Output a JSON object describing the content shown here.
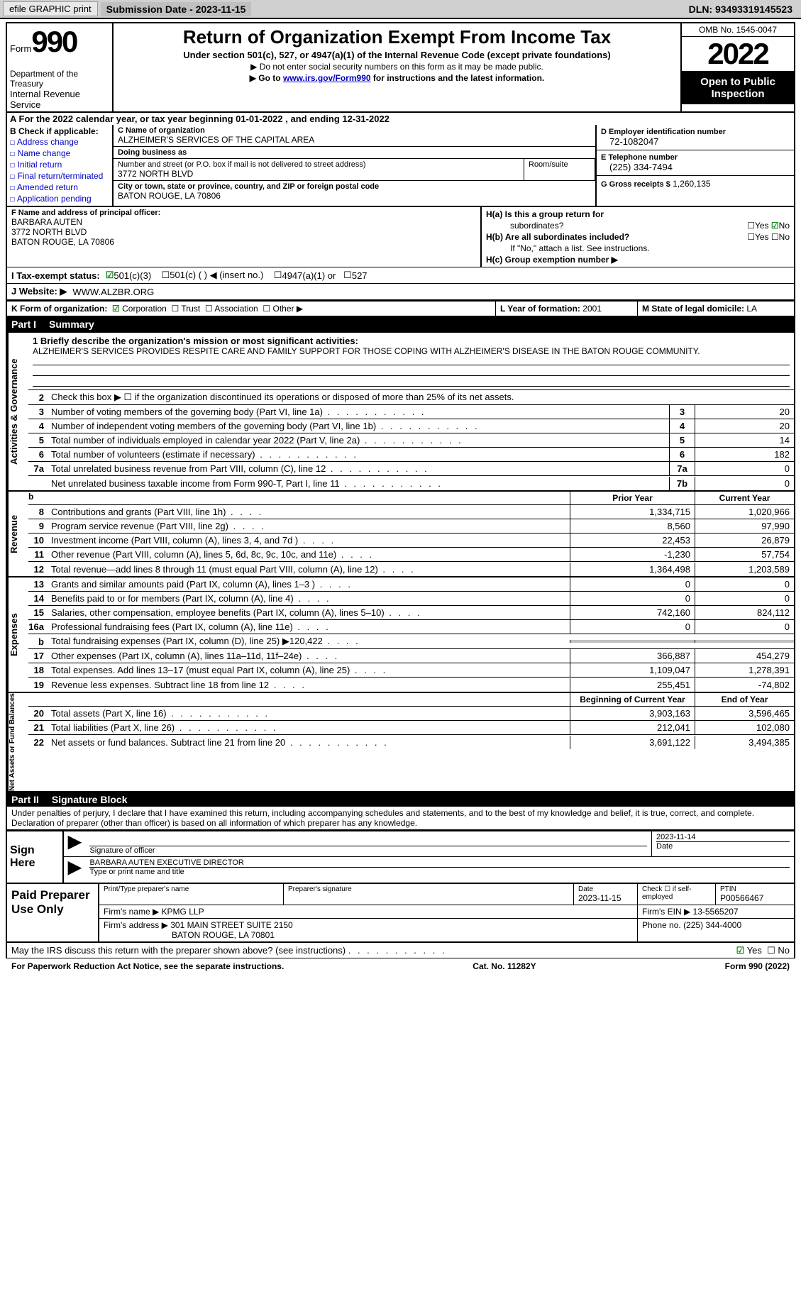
{
  "topbar": {
    "efile": "efile GRAPHIC print",
    "submission_date": "Submission Date - 2023-11-15",
    "dln": "DLN: 93493319145523"
  },
  "header": {
    "form_word": "Form",
    "form_number": "990",
    "dept": "Department of the Treasury",
    "irs": "Internal Revenue Service",
    "title": "Return of Organization Exempt From Income Tax",
    "subtitle": "Under section 501(c), 527, or 4947(a)(1) of the Internal Revenue Code (except private foundations)",
    "note1": "▶ Do not enter social security numbers on this form as it may be made public.",
    "note2_pre": "▶ Go to ",
    "note2_link": "www.irs.gov/Form990",
    "note2_post": " for instructions and the latest information.",
    "omb": "OMB No. 1545-0047",
    "year": "2022",
    "public": "Open to Public Inspection"
  },
  "sectionA": "A For the 2022 calendar year, or tax year beginning 01-01-2022   , and ending 12-31-2022",
  "sectionB": {
    "label": "B Check if applicable:",
    "opts": [
      "Address change",
      "Name change",
      "Initial return",
      "Final return/terminated",
      "Amended return",
      "Application pending"
    ]
  },
  "sectionC": {
    "name_label": "C Name of organization",
    "name": "ALZHEIMER'S SERVICES OF THE CAPITAL AREA",
    "dba_label": "Doing business as",
    "dba": "",
    "addr_label": "Number and street (or P.O. box if mail is not delivered to street address)",
    "addr": "3772 NORTH BLVD",
    "room_label": "Room/suite",
    "city_label": "City or town, state or province, country, and ZIP or foreign postal code",
    "city": "BATON ROUGE, LA  70806"
  },
  "sectionD": {
    "ein_label": "D Employer identification number",
    "ein": "72-1082047",
    "tel_label": "E Telephone number",
    "tel": "(225) 334-7494",
    "gross_label": "G Gross receipts $",
    "gross": "1,260,135"
  },
  "sectionF": {
    "label": "F Name and address of principal officer:",
    "name": "BARBARA AUTEN",
    "addr1": "3772 NORTH BLVD",
    "addr2": "BATON ROUGE, LA  70806"
  },
  "sectionH": {
    "ha_label": "H(a)  Is this a group return for",
    "ha_sub": "subordinates?",
    "hb_label": "H(b)  Are all subordinates included?",
    "hb_note": "If \"No,\" attach a list. See instructions.",
    "hc_label": "H(c)  Group exemption number ▶",
    "yes": "Yes",
    "no": "No"
  },
  "sectionI": {
    "label": "I   Tax-exempt status:",
    "o1": "501(c)(3)",
    "o2": "501(c) (  ) ◀ (insert no.)",
    "o3": "4947(a)(1) or",
    "o4": "527"
  },
  "sectionJ": {
    "label": "J   Website: ▶",
    "value": "WWW.ALZBR.ORG"
  },
  "sectionK": {
    "label": "K Form of organization:",
    "corp": "Corporation",
    "trust": "Trust",
    "assoc": "Association",
    "other": "Other ▶"
  },
  "sectionL": {
    "label": "L Year of formation:",
    "value": "2001"
  },
  "sectionM": {
    "label": "M State of legal domicile:",
    "value": "LA"
  },
  "part1": {
    "num": "Part I",
    "title": "Summary"
  },
  "part2": {
    "num": "Part II",
    "title": "Signature Block"
  },
  "vtabs": [
    "Activities & Governance",
    "Revenue",
    "Expenses",
    "Net Assets or Fund Balances"
  ],
  "mission": {
    "label": "1   Briefly describe the organization's mission or most significant activities:",
    "text": "ALZHEIMER'S SERVICES PROVIDES RESPITE CARE AND FAMILY SUPPORT FOR THOSE COPING WITH ALZHEIMER'S DISEASE IN THE BATON ROUGE COMMUNITY."
  },
  "line2": "Check this box ▶ ☐ if the organization discontinued its operations or disposed of more than 25% of its net assets.",
  "govlines": [
    {
      "n": "3",
      "t": "Number of voting members of the governing body (Part VI, line 1a)",
      "nb": "3",
      "v": "20"
    },
    {
      "n": "4",
      "t": "Number of independent voting members of the governing body (Part VI, line 1b)",
      "nb": "4",
      "v": "20"
    },
    {
      "n": "5",
      "t": "Total number of individuals employed in calendar year 2022 (Part V, line 2a)",
      "nb": "5",
      "v": "14"
    },
    {
      "n": "6",
      "t": "Total number of volunteers (estimate if necessary)",
      "nb": "6",
      "v": "182"
    },
    {
      "n": "7a",
      "t": "Total unrelated business revenue from Part VIII, column (C), line 12",
      "nb": "7a",
      "v": "0"
    },
    {
      "n": "",
      "t": "Net unrelated business taxable income from Form 990-T, Part I, line 11",
      "nb": "7b",
      "v": "0"
    }
  ],
  "colhdr1": {
    "c1": "Prior Year",
    "c2": "Current Year"
  },
  "revlines": [
    {
      "n": "8",
      "t": "Contributions and grants (Part VIII, line 1h)",
      "v1": "1,334,715",
      "v2": "1,020,966"
    },
    {
      "n": "9",
      "t": "Program service revenue (Part VIII, line 2g)",
      "v1": "8,560",
      "v2": "97,990"
    },
    {
      "n": "10",
      "t": "Investment income (Part VIII, column (A), lines 3, 4, and 7d )",
      "v1": "22,453",
      "v2": "26,879"
    },
    {
      "n": "11",
      "t": "Other revenue (Part VIII, column (A), lines 5, 6d, 8c, 9c, 10c, and 11e)",
      "v1": "-1,230",
      "v2": "57,754"
    },
    {
      "n": "12",
      "t": "Total revenue—add lines 8 through 11 (must equal Part VIII, column (A), line 12)",
      "v1": "1,364,498",
      "v2": "1,203,589"
    }
  ],
  "explines": [
    {
      "n": "13",
      "t": "Grants and similar amounts paid (Part IX, column (A), lines 1–3 )",
      "v1": "0",
      "v2": "0"
    },
    {
      "n": "14",
      "t": "Benefits paid to or for members (Part IX, column (A), line 4)",
      "v1": "0",
      "v2": "0"
    },
    {
      "n": "15",
      "t": "Salaries, other compensation, employee benefits (Part IX, column (A), lines 5–10)",
      "v1": "742,160",
      "v2": "824,112"
    },
    {
      "n": "16a",
      "t": "Professional fundraising fees (Part IX, column (A), line 11e)",
      "v1": "0",
      "v2": "0"
    },
    {
      "n": "b",
      "t": "Total fundraising expenses (Part IX, column (D), line 25) ▶120,422",
      "v1": "",
      "v2": "",
      "shade": true
    },
    {
      "n": "17",
      "t": "Other expenses (Part IX, column (A), lines 11a–11d, 11f–24e)",
      "v1": "366,887",
      "v2": "454,279"
    },
    {
      "n": "18",
      "t": "Total expenses. Add lines 13–17 (must equal Part IX, column (A), line 25)",
      "v1": "1,109,047",
      "v2": "1,278,391"
    },
    {
      "n": "19",
      "t": "Revenue less expenses. Subtract line 18 from line 12",
      "v1": "255,451",
      "v2": "-74,802"
    }
  ],
  "colhdr2": {
    "c1": "Beginning of Current Year",
    "c2": "End of Year"
  },
  "netlines": [
    {
      "n": "20",
      "t": "Total assets (Part X, line 16)",
      "v1": "3,903,163",
      "v2": "3,596,465"
    },
    {
      "n": "21",
      "t": "Total liabilities (Part X, line 26)",
      "v1": "212,041",
      "v2": "102,080"
    },
    {
      "n": "22",
      "t": "Net assets or fund balances. Subtract line 21 from line 20",
      "v1": "3,691,122",
      "v2": "3,494,385"
    }
  ],
  "declaration": "Under penalties of perjury, I declare that I have examined this return, including accompanying schedules and statements, and to the best of my knowledge and belief, it is true, correct, and complete. Declaration of preparer (other than officer) is based on all information of which preparer has any knowledge.",
  "sign": {
    "here": "Sign Here",
    "sig_of_officer": "Signature of officer",
    "date": "Date",
    "date_val": "2023-11-14",
    "name_title": "BARBARA AUTEN  EXECUTIVE DIRECTOR",
    "type_label": "Type or print name and title"
  },
  "prep": {
    "label": "Paid Preparer Use Only",
    "print_label": "Print/Type preparer's name",
    "sig_label": "Preparer's signature",
    "date_label": "Date",
    "date_val": "2023-11-15",
    "check_label": "Check ☐ if self-employed",
    "ptin_label": "PTIN",
    "ptin": "P00566467",
    "firm_name_label": "Firm's name   ▶",
    "firm_name": "KPMG LLP",
    "firm_ein_label": "Firm's EIN ▶",
    "firm_ein": "13-5565207",
    "firm_addr_label": "Firm's address ▶",
    "firm_addr1": "301 MAIN STREET SUITE 2150",
    "firm_addr2": "BATON ROUGE, LA  70801",
    "phone_label": "Phone no.",
    "phone": "(225) 344-4000"
  },
  "may_discuss": "May the IRS discuss this return with the preparer shown above? (see instructions)",
  "footer": {
    "left": "For Paperwork Reduction Act Notice, see the separate instructions.",
    "mid": "Cat. No. 11282Y",
    "right": "Form 990 (2022)"
  },
  "colors": {
    "link": "#0000bf",
    "check": "#198a1a"
  }
}
